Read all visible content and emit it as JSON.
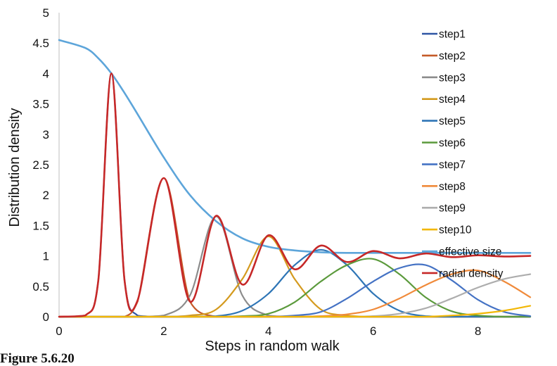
{
  "chart_data": {
    "type": "line",
    "title": "",
    "xlabel": "Steps in random walk",
    "ylabel": "Distribution density",
    "xlim": [
      0,
      9
    ],
    "ylim": [
      0,
      5
    ],
    "x_ticks": [
      "0",
      "2",
      "4",
      "6",
      "8"
    ],
    "y_ticks": [
      "0",
      "0.5",
      "1",
      "1.5",
      "2",
      "2.5",
      "3",
      "3.5",
      "4",
      "4.5",
      "5"
    ],
    "grid": false,
    "legend_position": "right",
    "x": [
      0,
      0.5,
      0.75,
      1,
      1.25,
      1.5,
      2,
      2.5,
      3,
      3.5,
      4,
      4.5,
      5,
      5.5,
      6,
      6.5,
      7,
      7.5,
      8,
      8.5,
      9
    ],
    "series": [
      {
        "name": "step1",
        "color": "#2F55A4",
        "values": [
          0,
          0.02,
          0.6,
          4.0,
          0.6,
          0.02,
          0,
          0,
          0,
          0,
          0,
          0,
          0,
          0,
          0,
          0,
          0,
          0,
          0,
          0,
          0
        ]
      },
      {
        "name": "step2",
        "color": "#C55A28",
        "values": [
          0,
          0,
          0,
          0,
          0,
          0.25,
          2.28,
          0.25,
          0,
          0,
          0,
          0,
          0,
          0,
          0,
          0,
          0,
          0,
          0,
          0,
          0
        ]
      },
      {
        "name": "step3",
        "color": "#8C8C8C",
        "values": [
          0,
          0,
          0,
          0,
          0,
          0,
          0.02,
          0.35,
          1.65,
          0.35,
          0.02,
          0,
          0,
          0,
          0,
          0,
          0,
          0,
          0,
          0,
          0
        ]
      },
      {
        "name": "step4",
        "color": "#D49A1E",
        "values": [
          0,
          0,
          0,
          0,
          0,
          0,
          0,
          0.02,
          0.12,
          0.62,
          1.32,
          0.62,
          0.12,
          0.02,
          0,
          0,
          0,
          0,
          0,
          0,
          0
        ]
      },
      {
        "name": "step5",
        "color": "#2E75B6",
        "values": [
          0,
          0,
          0,
          0,
          0,
          0,
          0,
          0,
          0.01,
          0.1,
          0.38,
          0.85,
          1.1,
          0.85,
          0.38,
          0.1,
          0.01,
          0,
          0,
          0,
          0
        ]
      },
      {
        "name": "step6",
        "color": "#5B9A3C",
        "values": [
          0,
          0,
          0,
          0,
          0,
          0,
          0,
          0,
          0,
          0.01,
          0.05,
          0.24,
          0.58,
          0.85,
          0.95,
          0.7,
          0.32,
          0.09,
          0.02,
          0,
          0
        ]
      },
      {
        "name": "step7",
        "color": "#4472C4",
        "values": [
          0,
          0,
          0,
          0,
          0,
          0,
          0,
          0,
          0,
          0,
          0,
          0.02,
          0.08,
          0.3,
          0.58,
          0.8,
          0.85,
          0.6,
          0.28,
          0.08,
          0.01
        ]
      },
      {
        "name": "step8",
        "color": "#F08A3A",
        "values": [
          0,
          0,
          0,
          0,
          0,
          0,
          0,
          0,
          0,
          0,
          0,
          0,
          0.01,
          0.04,
          0.12,
          0.3,
          0.52,
          0.7,
          0.76,
          0.58,
          0.32
        ]
      },
      {
        "name": "step9",
        "color": "#ADADAD",
        "values": [
          0,
          0,
          0,
          0,
          0,
          0,
          0,
          0,
          0,
          0,
          0,
          0,
          0,
          0,
          0.01,
          0.05,
          0.14,
          0.3,
          0.48,
          0.62,
          0.7
        ]
      },
      {
        "name": "step10",
        "color": "#F2B705",
        "values": [
          0,
          0,
          0,
          0,
          0,
          0,
          0,
          0,
          0,
          0,
          0,
          0,
          0,
          0,
          0,
          0,
          0,
          0.02,
          0.05,
          0.1,
          0.18
        ]
      },
      {
        "name": "effective size",
        "color": "#5DA5DA",
        "values": [
          4.55,
          4.42,
          4.25,
          4.0,
          3.68,
          3.33,
          2.62,
          2.0,
          1.57,
          1.29,
          1.15,
          1.09,
          1.06,
          1.05,
          1.05,
          1.05,
          1.05,
          1.05,
          1.05,
          1.05,
          1.05
        ]
      },
      {
        "name": "radial density",
        "color": "#C62828",
        "values": [
          0,
          0.02,
          0.6,
          4.0,
          0.6,
          0.27,
          2.28,
          0.25,
          1.66,
          0.53,
          1.34,
          0.78,
          1.17,
          0.9,
          1.08,
          0.96,
          1.04,
          0.98,
          1.01,
          0.99,
          1.0
        ]
      }
    ]
  },
  "caption": "Figure 5.6.20"
}
